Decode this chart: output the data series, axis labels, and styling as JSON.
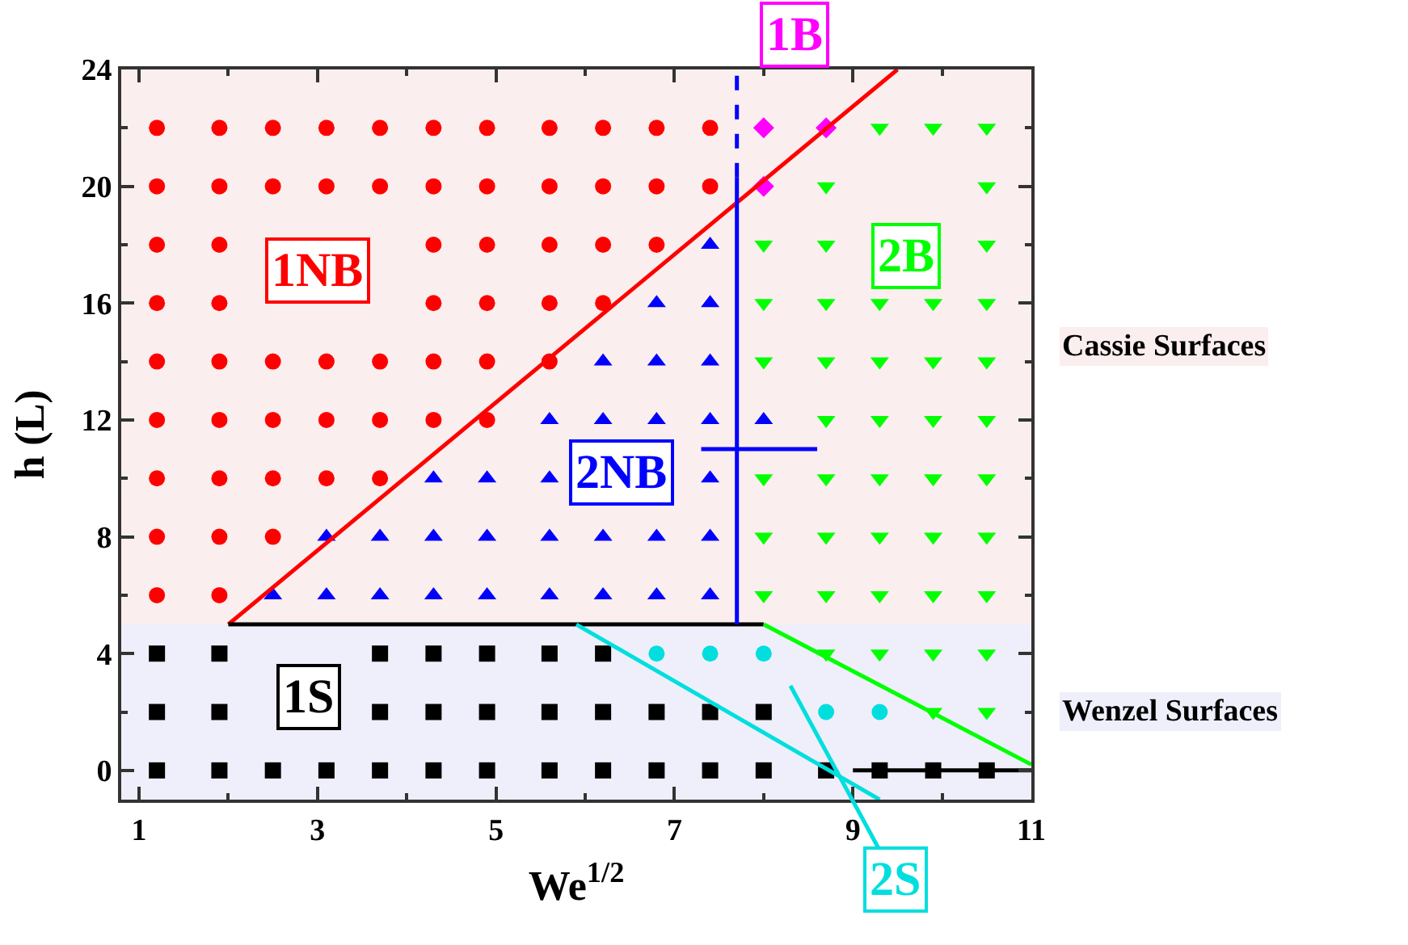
{
  "chart_data": {
    "type": "scatter",
    "xlabel": "We$^{1/2}$",
    "ylabel": "h (L)",
    "xlim": [
      0.8,
      11
    ],
    "ylim": [
      -1,
      24
    ],
    "xticks": [
      1,
      3,
      5,
      7,
      9,
      11
    ],
    "yticks": [
      0,
      4,
      8,
      12,
      16,
      20,
      24
    ],
    "grid": false,
    "bands": [
      {
        "axis": "y",
        "from": 5,
        "to": 24,
        "label": "Cassie Surfaces",
        "color": "#fbeeee"
      },
      {
        "axis": "y",
        "from": -1,
        "to": 5,
        "label": "Wenzel Surfaces",
        "color": "#efeffb"
      }
    ],
    "annotations": [
      "1NB",
      "2NB",
      "1B",
      "2B",
      "1S",
      "2S"
    ],
    "series": [
      {
        "color": "#ff0000",
        "marker": "circle",
        "x": [
          1.2,
          1.9,
          2.5,
          3.1,
          3.7,
          4.3,
          4.9,
          5.6,
          6.2,
          6.8,
          7.4,
          1.2,
          1.9,
          2.5,
          3.1,
          3.7,
          4.3,
          4.9,
          5.6,
          6.2,
          6.8,
          7.4,
          1.2,
          1.9,
          4.3,
          4.9,
          5.6,
          6.2,
          6.8,
          1.2,
          1.9,
          4.3,
          4.9,
          5.6,
          6.2,
          1.2,
          1.9,
          2.5,
          3.1,
          3.7,
          4.3,
          4.9,
          5.6,
          1.2,
          1.9,
          2.5,
          3.1,
          3.7,
          4.3,
          4.9,
          1.2,
          1.9,
          2.5,
          3.1,
          3.7,
          1.2,
          1.9,
          2.5,
          1.2,
          1.9
        ],
        "values": [
          22,
          22,
          22,
          22,
          22,
          22,
          22,
          22,
          22,
          22,
          22,
          20,
          20,
          20,
          20,
          20,
          20,
          20,
          20,
          20,
          20,
          20,
          18,
          18,
          18,
          18,
          18,
          18,
          18,
          16,
          16,
          16,
          16,
          16,
          16,
          14,
          14,
          14,
          14,
          14,
          14,
          14,
          14,
          12,
          12,
          12,
          12,
          12,
          12,
          12,
          10,
          10,
          10,
          10,
          10,
          8,
          8,
          8,
          6,
          6
        ]
      },
      {
        "color": "#0000ff",
        "marker": "triangle",
        "x": [
          7.4,
          6.8,
          7.4,
          6.2,
          6.8,
          7.4,
          5.6,
          6.2,
          6.8,
          7.4,
          8.0,
          4.3,
          4.9,
          5.6,
          7.4,
          3.1,
          3.7,
          4.3,
          4.9,
          5.6,
          6.2,
          6.8,
          7.4,
          2.5,
          3.1,
          3.7,
          4.3,
          4.9,
          5.6,
          6.2,
          6.8,
          7.4
        ],
        "values": [
          18,
          16,
          16,
          14,
          14,
          14,
          12,
          12,
          12,
          12,
          12,
          10,
          10,
          10,
          10,
          8,
          8,
          8,
          8,
          8,
          8,
          8,
          8,
          6,
          6,
          6,
          6,
          6,
          6,
          6,
          6,
          6
        ]
      },
      {
        "color": "#ff00ff",
        "marker": "diamond",
        "x": [
          8.0,
          8.7,
          8.0
        ],
        "values": [
          22,
          22,
          20
        ]
      },
      {
        "color": "#00ff00",
        "marker": "triangle-down",
        "x": [
          9.3,
          9.9,
          10.5,
          8.7,
          10.5,
          8.0,
          8.7,
          10.5,
          8.0,
          8.7,
          9.3,
          9.9,
          10.5,
          8.0,
          8.7,
          9.3,
          9.9,
          10.5,
          8.7,
          9.3,
          9.9,
          10.5,
          8.0,
          8.7,
          9.3,
          9.9,
          10.5,
          8.0,
          8.7,
          9.3,
          9.9,
          10.5,
          8.0,
          8.7,
          9.3,
          9.9,
          10.5,
          8.7,
          9.3,
          9.9,
          10.5,
          9.9,
          10.5
        ],
        "values": [
          22,
          22,
          22,
          20,
          20,
          18,
          18,
          18,
          16,
          16,
          16,
          16,
          16,
          14,
          14,
          14,
          14,
          14,
          12,
          12,
          12,
          12,
          10,
          10,
          10,
          10,
          10,
          8,
          8,
          8,
          8,
          8,
          6,
          6,
          6,
          6,
          6,
          4,
          4,
          4,
          4,
          2,
          2
        ]
      },
      {
        "color": "#000000",
        "marker": "square",
        "x": [
          1.2,
          1.9,
          3.7,
          4.3,
          4.9,
          5.6,
          6.2,
          1.2,
          1.9,
          3.7,
          4.3,
          4.9,
          5.6,
          6.2,
          6.8,
          7.4,
          8.0,
          1.2,
          1.9,
          2.5,
          3.1,
          3.7,
          4.3,
          4.9,
          5.6,
          6.2,
          6.8,
          7.4,
          8.0,
          8.7,
          9.3,
          9.9,
          10.5
        ],
        "values": [
          4,
          4,
          4,
          4,
          4,
          4,
          4,
          2,
          2,
          2,
          2,
          2,
          2,
          2,
          2,
          2,
          2,
          0,
          0,
          0,
          0,
          0,
          0,
          0,
          0,
          0,
          0,
          0,
          0,
          0,
          0,
          0,
          0
        ]
      },
      {
        "color": "#00dede",
        "x": [
          6.8,
          7.4,
          8.0,
          8.7,
          9.3
        ],
        "values": [
          4,
          4,
          4,
          2,
          2
        ]
      },
      {
        "type": "line",
        "color": "#ff0000",
        "marker": "none",
        "line_style": "solid",
        "x": [
          2.0,
          9.5
        ],
        "values": [
          5,
          24
        ]
      },
      {
        "type": "line",
        "color": "#000000",
        "marker": "none",
        "line_style": "solid",
        "x": [
          2.0,
          8.0,
          null,
          9.0,
          11
        ],
        "values": [
          5,
          5,
          null,
          0,
          0
        ]
      },
      {
        "type": "line",
        "color": "#0000ff",
        "marker": "none",
        "line_style": "solid",
        "x": [
          7.7,
          7.7
        ],
        "values": [
          5,
          20.3
        ]
      },
      {
        "type": "line",
        "color": "#0000ff",
        "marker": "none",
        "line_style": "dashed",
        "x": [
          7.7,
          7.7
        ],
        "values": [
          20.3,
          24
        ]
      },
      {
        "type": "line",
        "color": "#00ff00",
        "marker": "none",
        "line_style": "solid",
        "x": [
          8.0,
          11
        ],
        "values": [
          5,
          0.2
        ]
      },
      {
        "type": "line",
        "color": "#00dede",
        "marker": "none",
        "line_style": "solid",
        "x": [
          5.9,
          9.3
        ],
        "values": [
          5,
          -1
        ]
      },
      {
        "type": "line",
        "color": "#0000ff",
        "marker": "none",
        "line_style": "solid",
        "x": [
          7.3,
          8.6
        ],
        "values": [
          11,
          11
        ]
      }
    ]
  }
}
